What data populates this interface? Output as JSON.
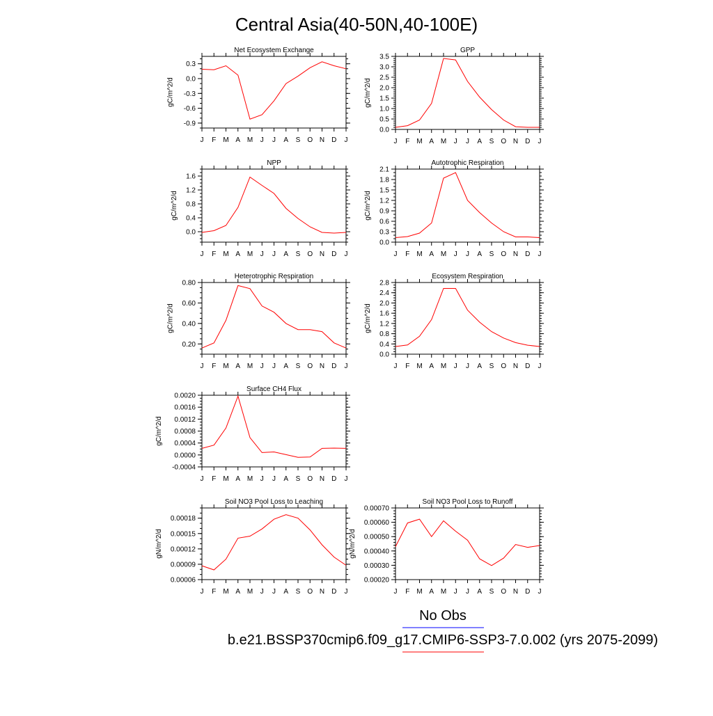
{
  "figure": {
    "title": "Central Asia(40-50N,40-100E)",
    "colors": {
      "model": "#ff0000",
      "obs": "#0000ff"
    },
    "legend": {
      "placement": "bottom",
      "obs_label": "No Obs",
      "model_label": "b.e21.BSSP370cmip6.f09_g17.CMIP6-SSP3-7.0.002 (yrs 2075-2099)"
    }
  },
  "chart_data": [
    {
      "type": "line",
      "title": "Net Ecosystem Exchange",
      "ylabel": "gC/m^2/d",
      "categories": [
        "J",
        "F",
        "M",
        "A",
        "M",
        "J",
        "J",
        "A",
        "S",
        "O",
        "N",
        "D",
        "J"
      ],
      "ylim": [
        -1.0,
        0.45
      ],
      "yticks": [
        -0.9,
        -0.6,
        -0.3,
        0.0,
        0.3
      ],
      "yticklabels": [
        "-0.9",
        "-0.6",
        "-0.3",
        "0.0",
        "0.3"
      ],
      "minor_step": 0.1,
      "series": [
        {
          "values": [
            0.19,
            0.18,
            0.26,
            0.07,
            -0.82,
            -0.73,
            -0.45,
            -0.1,
            0.05,
            0.22,
            0.34,
            0.26,
            0.2
          ]
        }
      ]
    },
    {
      "type": "line",
      "title": "GPP",
      "ylabel": "gC/m^2/d",
      "categories": [
        "J",
        "F",
        "M",
        "A",
        "M",
        "J",
        "J",
        "A",
        "S",
        "O",
        "N",
        "D",
        "J"
      ],
      "ylim": [
        0,
        3.5
      ],
      "yticks": [
        0,
        0.5,
        1.0,
        1.5,
        2.0,
        2.5,
        3.0,
        3.5
      ],
      "yticklabels": [
        "0.0",
        "0.5",
        "1.0",
        "1.5",
        "2.0",
        "2.5",
        "3.0",
        "3.5"
      ],
      "minor_step": 0.1,
      "series": [
        {
          "values": [
            0.1,
            0.18,
            0.45,
            1.25,
            3.4,
            3.33,
            2.3,
            1.55,
            0.95,
            0.45,
            0.13,
            0.1,
            0.1
          ]
        }
      ]
    },
    {
      "type": "line",
      "title": "NPP",
      "ylabel": "gC/m^2/d",
      "categories": [
        "J",
        "F",
        "M",
        "A",
        "M",
        "J",
        "J",
        "A",
        "S",
        "O",
        "N",
        "D",
        "J"
      ],
      "ylim": [
        -0.3,
        1.8
      ],
      "yticks": [
        0,
        0.4,
        0.8,
        1.2,
        1.6
      ],
      "yticklabels": [
        "0.0",
        "0.4",
        "0.8",
        "1.2",
        "1.6"
      ],
      "minor_step": 0.1,
      "series": [
        {
          "values": [
            -0.02,
            0.03,
            0.18,
            0.7,
            1.57,
            1.33,
            1.1,
            0.67,
            0.38,
            0.14,
            -0.02,
            -0.04,
            -0.02
          ]
        }
      ]
    },
    {
      "type": "line",
      "title": "Autotrophic Respiration",
      "ylabel": "gC/m^2/d",
      "categories": [
        "J",
        "F",
        "M",
        "A",
        "M",
        "J",
        "J",
        "A",
        "S",
        "O",
        "N",
        "D",
        "J"
      ],
      "ylim": [
        0,
        2.1
      ],
      "yticks": [
        0,
        0.3,
        0.6,
        0.9,
        1.2,
        1.5,
        1.8,
        2.1
      ],
      "yticklabels": [
        "0.0",
        "0.3",
        "0.6",
        "0.9",
        "1.2",
        "1.5",
        "1.8",
        "2.1"
      ],
      "minor_step": 0.1,
      "series": [
        {
          "values": [
            0.13,
            0.16,
            0.26,
            0.55,
            1.84,
            2.0,
            1.2,
            0.85,
            0.55,
            0.3,
            0.15,
            0.15,
            0.13
          ]
        }
      ]
    },
    {
      "type": "line",
      "title": "Heterotrophic Respiration",
      "ylabel": "gC/m^2/d",
      "categories": [
        "J",
        "F",
        "M",
        "A",
        "M",
        "J",
        "J",
        "A",
        "S",
        "O",
        "N",
        "D",
        "J"
      ],
      "ylim": [
        0.1,
        0.8
      ],
      "yticks": [
        0.2,
        0.4,
        0.6,
        0.8
      ],
      "yticklabels": [
        "0.20",
        "0.40",
        "0.60",
        "0.80"
      ],
      "minor_step": 0.05,
      "series": [
        {
          "values": [
            0.16,
            0.21,
            0.43,
            0.77,
            0.74,
            0.57,
            0.51,
            0.4,
            0.34,
            0.34,
            0.32,
            0.21,
            0.16
          ]
        }
      ]
    },
    {
      "type": "line",
      "title": "Ecosystem Respiration",
      "ylabel": "gC/m^2/d",
      "categories": [
        "J",
        "F",
        "M",
        "A",
        "M",
        "J",
        "J",
        "A",
        "S",
        "O",
        "N",
        "D",
        "J"
      ],
      "ylim": [
        0,
        2.8
      ],
      "yticks": [
        0,
        0.4,
        0.8,
        1.2,
        1.6,
        2.0,
        2.4,
        2.8
      ],
      "yticklabels": [
        "0.0",
        "0.4",
        "0.8",
        "1.2",
        "1.6",
        "2.0",
        "2.4",
        "2.8"
      ],
      "minor_step": 0.1,
      "series": [
        {
          "values": [
            0.3,
            0.36,
            0.7,
            1.35,
            2.57,
            2.57,
            1.72,
            1.25,
            0.88,
            0.63,
            0.45,
            0.35,
            0.3
          ]
        }
      ]
    },
    {
      "type": "line",
      "title": "Surface CH4 Flux",
      "ylabel": "gC/m^2/d",
      "categories": [
        "J",
        "F",
        "M",
        "A",
        "M",
        "J",
        "J",
        "A",
        "S",
        "O",
        "N",
        "D",
        "J"
      ],
      "ylim": [
        -0.0004,
        0.002
      ],
      "yticks": [
        -0.0004,
        0,
        0.0004,
        0.0008,
        0.0012,
        0.0016,
        0.002
      ],
      "yticklabels": [
        "-0.0004",
        "0.0000",
        "0.0004",
        "0.0008",
        "0.0012",
        "0.0016",
        "0.0020"
      ],
      "minor_step": 0.0001,
      "series": [
        {
          "values": [
            0.00022,
            0.00033,
            0.0009,
            0.00197,
            0.00058,
            8e-05,
            0.0001,
            1e-05,
            -8e-05,
            -7e-05,
            0.00022,
            0.00023,
            0.00022
          ]
        }
      ]
    },
    {
      "type": "line",
      "title": "Soil NO3 Pool Loss to Leaching",
      "ylabel": "gN/m^2/d",
      "categories": [
        "J",
        "F",
        "M",
        "A",
        "M",
        "J",
        "J",
        "A",
        "S",
        "O",
        "N",
        "D",
        "J"
      ],
      "ylim": [
        6e-05,
        0.0002
      ],
      "yticks": [
        6e-05,
        9e-05,
        0.00012,
        0.00015,
        0.00018
      ],
      "yticklabels": [
        "0.00006",
        "0.00009",
        "0.00012",
        "0.00015",
        "0.00018"
      ],
      "minor_step": 1e-05,
      "series": [
        {
          "values": [
            8.7e-05,
            7.9e-05,
            0.0001,
            0.000141,
            0.000145,
            0.000159,
            0.000178,
            0.000187,
            0.00018,
            0.000157,
            0.000128,
            0.000104,
            8.8e-05
          ]
        }
      ]
    },
    {
      "type": "line",
      "title": "Soil NO3 Pool Loss to Runoff",
      "ylabel": "gN/m^2/d",
      "categories": [
        "J",
        "F",
        "M",
        "A",
        "M",
        "J",
        "J",
        "A",
        "S",
        "O",
        "N",
        "D",
        "J"
      ],
      "ylim": [
        0.0002,
        0.0007
      ],
      "yticks": [
        0.0002,
        0.0003,
        0.0004,
        0.0005,
        0.0006,
        0.0007
      ],
      "yticklabels": [
        "0.00020",
        "0.00030",
        "0.00040",
        "0.00050",
        "0.00060",
        "0.00070"
      ],
      "minor_step": 2e-05,
      "series": [
        {
          "values": [
            0.00043,
            0.000595,
            0.000622,
            0.0005,
            0.00061,
            0.000538,
            0.000475,
            0.000345,
            0.000298,
            0.00035,
            0.000445,
            0.000425,
            0.000438
          ]
        }
      ]
    }
  ]
}
